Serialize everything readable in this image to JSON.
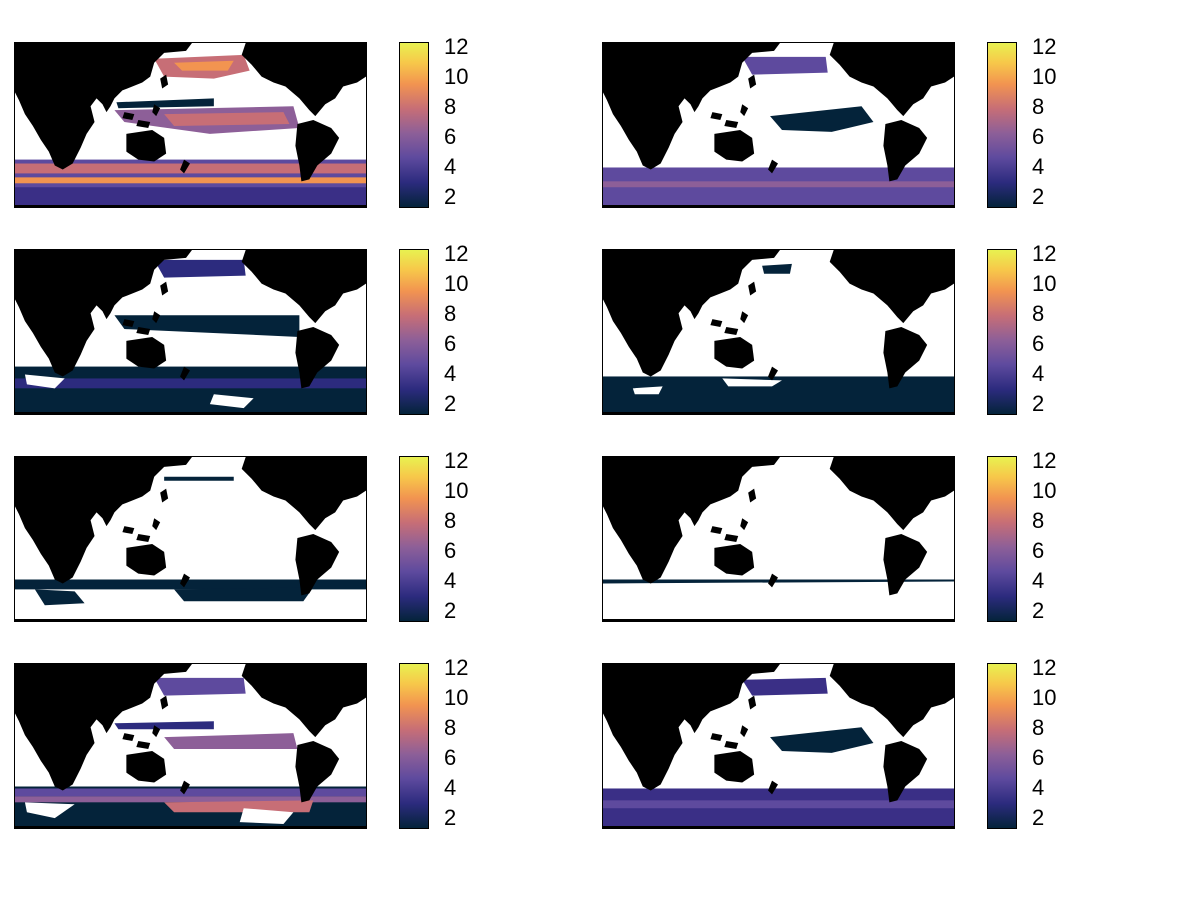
{
  "colormap": {
    "name": "thermal",
    "stops": [
      "#04233a",
      "#2c2b7e",
      "#5e4a9e",
      "#8d5f98",
      "#c76e76",
      "#f29450",
      "#f7c84a",
      "#e8f150"
    ],
    "tick_labels": [
      "12",
      "10",
      "8",
      "6",
      "4",
      "2"
    ],
    "range": [
      1,
      12
    ]
  },
  "land_color": "#000000",
  "masked_color": "#ffffff",
  "panels": [
    {
      "id": "panel-1",
      "row": 1,
      "col": 1,
      "intensity": "high"
    },
    {
      "id": "panel-2",
      "row": 1,
      "col": 2,
      "intensity": "medium"
    },
    {
      "id": "panel-3",
      "row": 2,
      "col": 1,
      "intensity": "low"
    },
    {
      "id": "panel-4",
      "row": 2,
      "col": 2,
      "intensity": "very-low"
    },
    {
      "id": "panel-5",
      "row": 3,
      "col": 1,
      "intensity": "minimal"
    },
    {
      "id": "panel-6",
      "row": 3,
      "col": 2,
      "intensity": "near-none"
    },
    {
      "id": "panel-7",
      "row": 4,
      "col": 1,
      "intensity": "high-partial"
    },
    {
      "id": "panel-8",
      "row": 4,
      "col": 2,
      "intensity": "medium"
    }
  ]
}
